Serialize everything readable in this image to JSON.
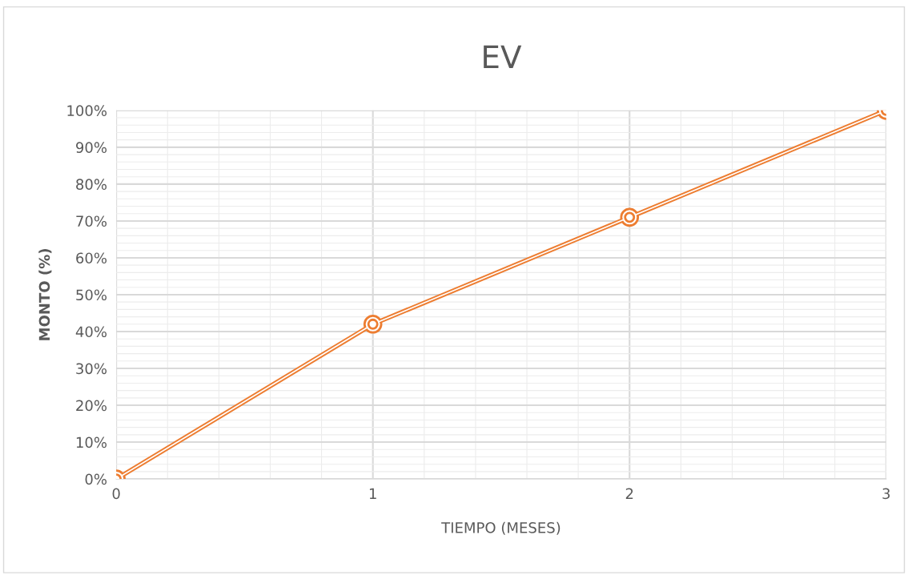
{
  "chart_data": {
    "type": "line",
    "title": "EV",
    "xlabel": "TIEMPO (MESES)",
    "ylabel": "MONTO (%)",
    "x": [
      0,
      1,
      2,
      3
    ],
    "series": [
      {
        "color": "#ed7d31",
        "values": [
          0,
          42,
          71,
          100
        ]
      }
    ],
    "xlim": [
      0,
      3
    ],
    "xticks": [
      0,
      1,
      2,
      3
    ],
    "ylim": [
      0,
      100
    ],
    "yticks": [
      {
        "value": 0,
        "label": "0%"
      },
      {
        "value": 10,
        "label": "10%"
      },
      {
        "value": 20,
        "label": "20%"
      },
      {
        "value": 30,
        "label": "30%"
      },
      {
        "value": 40,
        "label": "40%"
      },
      {
        "value": 50,
        "label": "50%"
      },
      {
        "value": 60,
        "label": "60%"
      },
      {
        "value": 70,
        "label": "70%"
      },
      {
        "value": 80,
        "label": "80%"
      },
      {
        "value": 90,
        "label": "90%"
      },
      {
        "value": 100,
        "label": "100%"
      }
    ],
    "grid": true,
    "marker": "circle",
    "line_style": "solid",
    "legend": false
  }
}
